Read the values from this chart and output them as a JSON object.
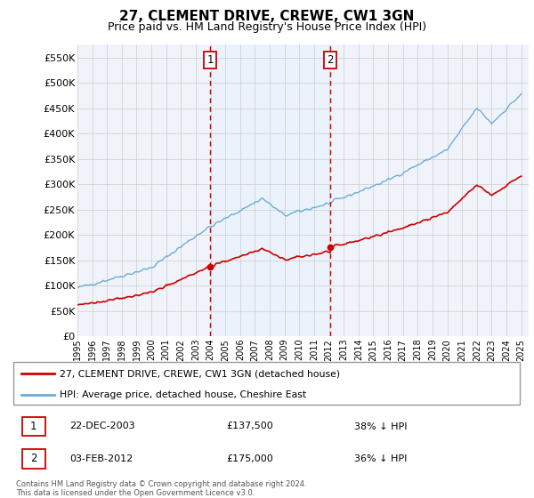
{
  "title": "27, CLEMENT DRIVE, CREWE, CW1 3GN",
  "subtitle": "Price paid vs. HM Land Registry's House Price Index (HPI)",
  "ylabel_ticks": [
    "£0",
    "£50K",
    "£100K",
    "£150K",
    "£200K",
    "£250K",
    "£300K",
    "£350K",
    "£400K",
    "£450K",
    "£500K",
    "£550K"
  ],
  "ytick_values": [
    0,
    50000,
    100000,
    150000,
    200000,
    250000,
    300000,
    350000,
    400000,
    450000,
    500000,
    550000
  ],
  "ylim": [
    0,
    575000
  ],
  "xlim_start": 1995.0,
  "xlim_end": 2025.5,
  "purchase1_date": 2003.97,
  "purchase1_price": 137500,
  "purchase2_date": 2012.09,
  "purchase2_price": 175000,
  "legend_line1": "27, CLEMENT DRIVE, CREWE, CW1 3GN (detached house)",
  "legend_line2": "HPI: Average price, detached house, Cheshire East",
  "annotation1_date": "22-DEC-2003",
  "annotation1_price": "£137,500",
  "annotation1_pct": "38% ↓ HPI",
  "annotation2_date": "03-FEB-2012",
  "annotation2_price": "£175,000",
  "annotation2_pct": "36% ↓ HPI",
  "footer": "Contains HM Land Registry data © Crown copyright and database right 2024.\nThis data is licensed under the Open Government Licence v3.0.",
  "hpi_color": "#6baed6",
  "price_color": "#cc0000",
  "vline_color": "#cc0000",
  "shading_color": "#ddeeff",
  "grid_color": "#cccccc",
  "title_fontsize": 11,
  "subtitle_fontsize": 9
}
